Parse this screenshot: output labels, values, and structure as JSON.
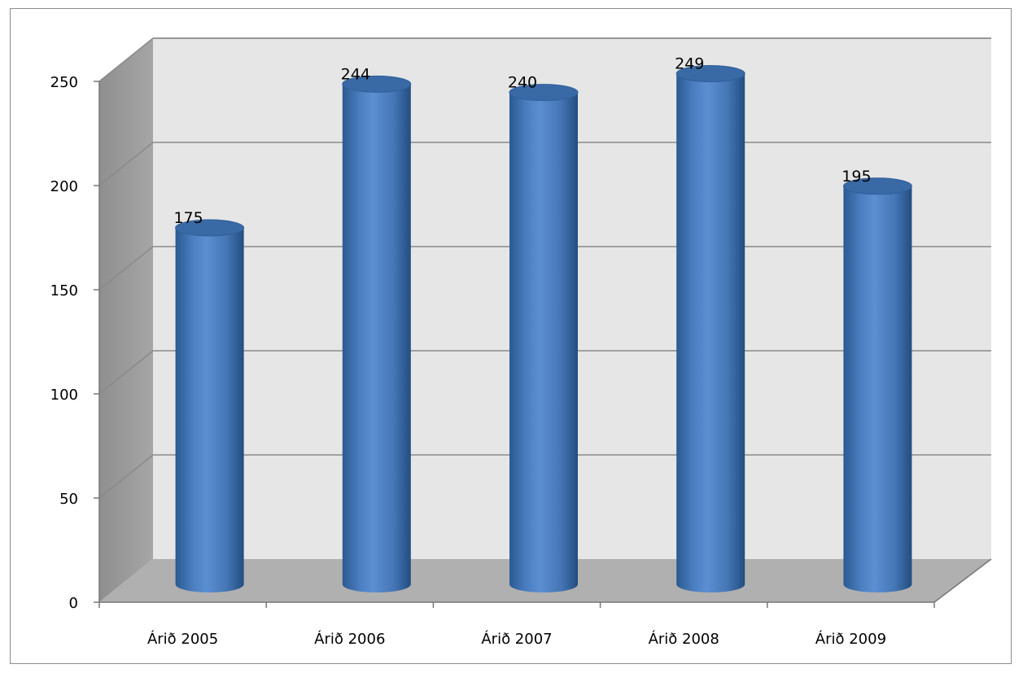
{
  "chart_data": {
    "type": "bar",
    "bar_shape": "cylinder-3d",
    "categories": [
      "Árið 2005",
      "Árið 2006",
      "Árið 2007",
      "Árið 2008",
      "Árið 2009"
    ],
    "values": [
      175,
      244,
      240,
      249,
      195
    ],
    "data_labels": [
      "175",
      "244",
      "240",
      "249",
      "195"
    ],
    "title": "",
    "xlabel": "",
    "ylabel": "",
    "ylim": [
      0,
      250
    ],
    "yticks": [
      0,
      50,
      100,
      150,
      200,
      250
    ],
    "grid": true,
    "legend": "none",
    "colors": {
      "bar": "#4f81bd",
      "bar_dark": "#2c5a8f",
      "bar_top": "#3a6aa6",
      "back_wall": "#e6e6e6",
      "side_wall": "#999999",
      "floor": "#b0b0b0",
      "gridline": "#8a8a8a"
    }
  }
}
